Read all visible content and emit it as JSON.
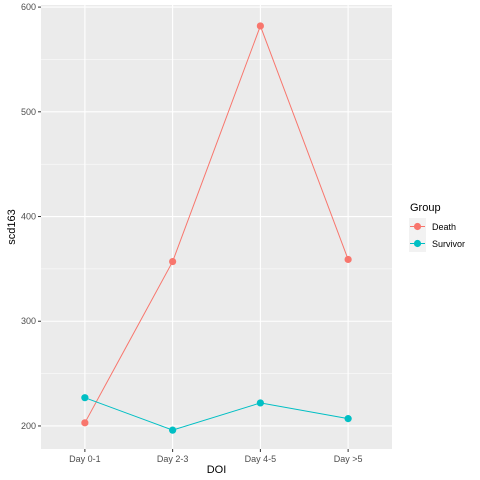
{
  "chart_data": {
    "type": "line",
    "categories": [
      "Day 0-1",
      "Day 2-3",
      "Day 4-5",
      "Day >5"
    ],
    "series": [
      {
        "name": "Death",
        "values": [
          203,
          357,
          582,
          359
        ],
        "color": "#F8766D"
      },
      {
        "name": "Survivor",
        "values": [
          227,
          196,
          222,
          207
        ],
        "color": "#00BFC4"
      }
    ],
    "xlabel": "DOI",
    "ylabel": "scd163",
    "ylim": [
      178,
      602
    ],
    "yticks": [
      200,
      300,
      400,
      500,
      600
    ],
    "yticks_minor": [
      250,
      350,
      450,
      550
    ],
    "grid": true,
    "legend": {
      "title": "Group",
      "position": "right"
    },
    "panel_background": "#EBEBEB",
    "grid_color": "#FFFFFF"
  }
}
